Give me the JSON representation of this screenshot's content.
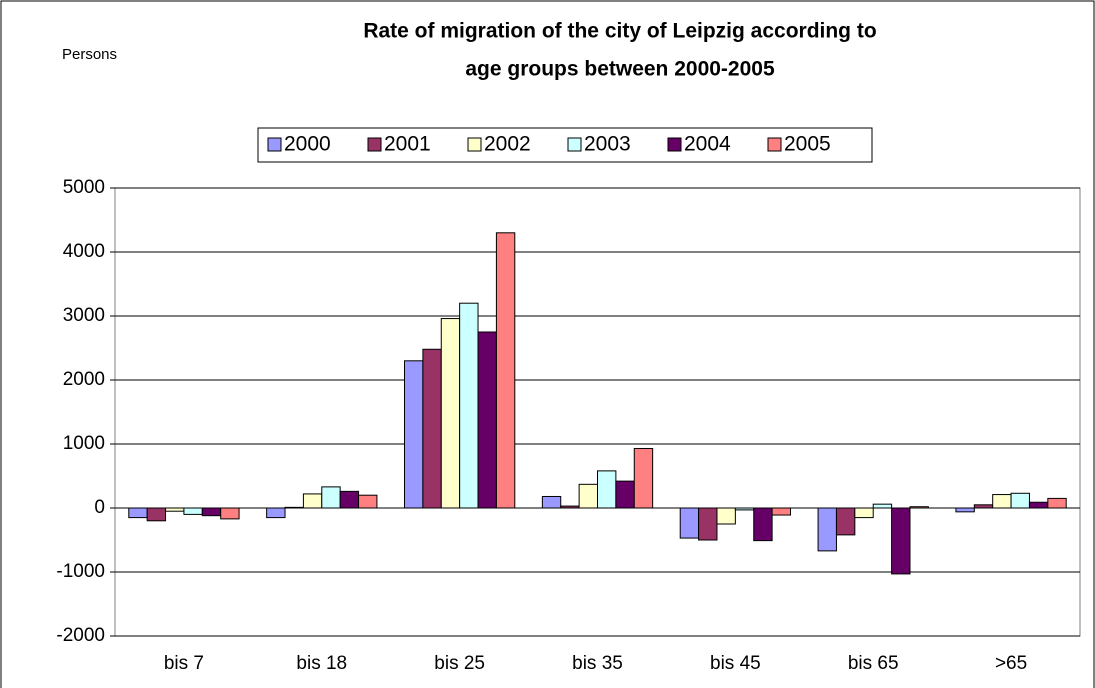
{
  "chart_data": {
    "type": "bar",
    "title": "Rate of migration of the city of Leipzig according to age groups between 2000-2005",
    "y_label": "Persons",
    "categories": [
      "bis 7",
      "bis 18",
      "bis 25",
      "bis 35",
      "bis 45",
      "bis 65",
      ">65"
    ],
    "series": [
      {
        "name": "2000",
        "color": "#9999ff",
        "values": [
          -150,
          -150,
          2300,
          180,
          -470,
          -670,
          -60
        ]
      },
      {
        "name": "2001",
        "color": "#993366",
        "values": [
          -200,
          10,
          2480,
          30,
          -500,
          -420,
          50
        ]
      },
      {
        "name": "2002",
        "color": "#ffffcc",
        "values": [
          -50,
          220,
          2960,
          370,
          -250,
          -150,
          210
        ]
      },
      {
        "name": "2003",
        "color": "#ccffff",
        "values": [
          -100,
          330,
          3200,
          580,
          -30,
          60,
          230
        ]
      },
      {
        "name": "2004",
        "color": "#660066",
        "values": [
          -120,
          260,
          2750,
          420,
          -510,
          -1030,
          90
        ]
      },
      {
        "name": "2005",
        "color": "#ff8080",
        "values": [
          -170,
          200,
          4300,
          930,
          -110,
          20,
          150
        ]
      }
    ],
    "ylim": [
      -2000,
      5000
    ],
    "yticks": [
      -2000,
      -1000,
      0,
      1000,
      2000,
      3000,
      4000,
      5000
    ],
    "grid": true,
    "legend": "top"
  }
}
